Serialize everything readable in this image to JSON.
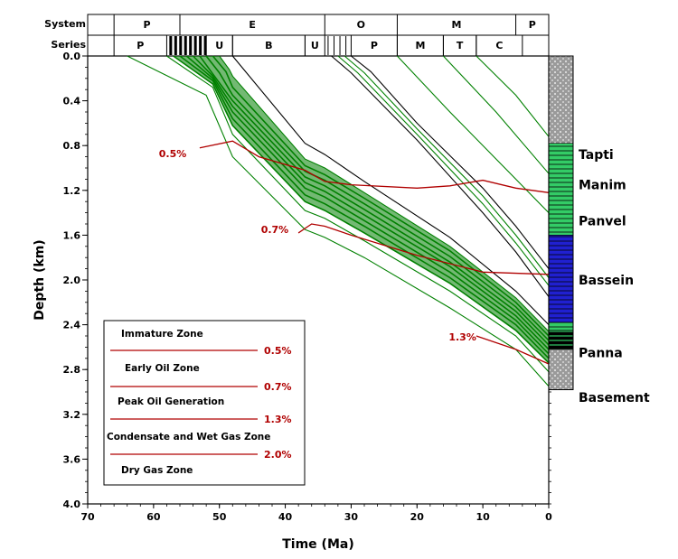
{
  "chart_data": {
    "type": "line",
    "title": "",
    "xlabel": "Time (Ma)",
    "ylabel": "Depth (km)",
    "xlim": [
      70,
      0
    ],
    "ylim": [
      0.0,
      4.0
    ],
    "x_ticks": [
      "70",
      "60",
      "50",
      "40",
      "30",
      "20",
      "10",
      "0"
    ],
    "y_ticks": [
      "0.0",
      "0.4",
      "0.8",
      "1.2",
      "1.6",
      "2.0",
      "2.4",
      "2.8",
      "3.2",
      "3.6",
      "4.0"
    ],
    "system_label": "System",
    "series_label": "Series",
    "systems": [
      {
        "label": "P",
        "start": 66,
        "end": 56
      },
      {
        "label": "E",
        "start": 56,
        "end": 34
      },
      {
        "label": "O",
        "start": 34,
        "end": 23
      },
      {
        "label": "M",
        "start": 23,
        "end": 5
      },
      {
        "label": "P",
        "start": 5,
        "end": 0
      }
    ],
    "series_epochs": [
      {
        "label": "P",
        "start": 66,
        "end": 58
      },
      {
        "label": "U",
        "start": 52,
        "end": 48
      },
      {
        "label": "B",
        "start": 48,
        "end": 37
      },
      {
        "label": "U",
        "start": 37,
        "end": 34
      },
      {
        "label": "P",
        "start": 30,
        "end": 23
      },
      {
        "label": "M",
        "start": 23,
        "end": 16
      },
      {
        "label": "T",
        "start": 16,
        "end": 11
      },
      {
        "label": "C",
        "start": 11,
        "end": 4
      }
    ],
    "burial_curves": [
      {
        "start": 64,
        "x": [
          64,
          52,
          48,
          37,
          34,
          28,
          15,
          5,
          0
        ],
        "y": [
          0,
          0.35,
          0.9,
          1.55,
          1.62,
          1.8,
          2.25,
          2.62,
          2.95
        ],
        "color": "#008000",
        "weight": 1
      },
      {
        "start": 58,
        "x": [
          58,
          51,
          48,
          37,
          34,
          28,
          15,
          5,
          0
        ],
        "y": [
          0,
          0.28,
          0.7,
          1.38,
          1.45,
          1.65,
          2.1,
          2.5,
          2.82
        ],
        "color": "#008000",
        "weight": 1
      },
      {
        "start": 57,
        "x": [
          57,
          51,
          48,
          37,
          34,
          28,
          15,
          5,
          0
        ],
        "y": [
          0,
          0.25,
          0.62,
          1.3,
          1.38,
          1.58,
          2.03,
          2.45,
          2.74
        ],
        "color": "#008000",
        "weight": 2
      },
      {
        "start": 56,
        "x": [
          56,
          51,
          48,
          37,
          34,
          28,
          15,
          5,
          0
        ],
        "y": [
          0,
          0.22,
          0.56,
          1.24,
          1.32,
          1.52,
          1.98,
          2.4,
          2.7
        ],
        "color": "#008000",
        "weight": 2
      },
      {
        "start": 55,
        "x": [
          55,
          51,
          48,
          37,
          34,
          28,
          15,
          5,
          0
        ],
        "y": [
          0,
          0.2,
          0.5,
          1.18,
          1.26,
          1.47,
          1.93,
          2.36,
          2.66
        ],
        "color": "#008000",
        "weight": 2
      },
      {
        "start": 54,
        "x": [
          54,
          51,
          48,
          37,
          34,
          28,
          15,
          5,
          0
        ],
        "y": [
          0,
          0.18,
          0.45,
          1.13,
          1.21,
          1.42,
          1.88,
          2.32,
          2.62
        ],
        "color": "#008000",
        "weight": 2
      },
      {
        "start": 53,
        "x": [
          53,
          51,
          48,
          37,
          34,
          28,
          15,
          5,
          0
        ],
        "y": [
          0,
          0.16,
          0.4,
          1.08,
          1.16,
          1.37,
          1.84,
          2.28,
          2.58
        ],
        "color": "#008000",
        "weight": 2
      },
      {
        "start": 52,
        "x": [
          52,
          50,
          48,
          37,
          34,
          28,
          15,
          5,
          0
        ],
        "y": [
          0,
          0.15,
          0.35,
          1.03,
          1.11,
          1.32,
          1.79,
          2.24,
          2.54
        ],
        "color": "#008000",
        "weight": 2
      },
      {
        "start": 51,
        "x": [
          51,
          49,
          48,
          37,
          34,
          28,
          15,
          5,
          0
        ],
        "y": [
          0,
          0.14,
          0.28,
          0.98,
          1.06,
          1.27,
          1.74,
          2.2,
          2.5
        ],
        "color": "#008000",
        "weight": 2
      },
      {
        "start": 50,
        "x": [
          50,
          48.5,
          48,
          37,
          34,
          28,
          15,
          5,
          0
        ],
        "y": [
          0,
          0.12,
          0.18,
          0.92,
          1.0,
          1.22,
          1.7,
          2.16,
          2.46
        ],
        "color": "#008000",
        "weight": 1
      },
      {
        "start": 48,
        "x": [
          48,
          37,
          34,
          28,
          15,
          5,
          0
        ],
        "y": [
          0,
          0.78,
          0.88,
          1.12,
          1.62,
          2.1,
          2.4
        ],
        "color": "#000000",
        "weight": 1
      },
      {
        "start": 33,
        "x": [
          33,
          30,
          20,
          10,
          5,
          0
        ],
        "y": [
          0,
          0.15,
          0.75,
          1.4,
          1.75,
          2.15
        ],
        "color": "#000000",
        "weight": 1
      },
      {
        "start": 32,
        "x": [
          32,
          29,
          20,
          10,
          5,
          0
        ],
        "y": [
          0,
          0.15,
          0.7,
          1.32,
          1.67,
          2.05
        ],
        "color": "#008000",
        "weight": 1
      },
      {
        "start": 31,
        "x": [
          31,
          28,
          20,
          10,
          5,
          0
        ],
        "y": [
          0,
          0.15,
          0.65,
          1.25,
          1.6,
          1.98
        ],
        "color": "#008000",
        "weight": 1
      },
      {
        "start": 30,
        "x": [
          30,
          27,
          20,
          10,
          5,
          0
        ],
        "y": [
          0,
          0.14,
          0.6,
          1.18,
          1.52,
          1.9
        ],
        "color": "#000000",
        "weight": 1
      },
      {
        "start": 23,
        "x": [
          23,
          15,
          5,
          0
        ],
        "y": [
          0,
          0.5,
          1.1,
          1.4
        ],
        "color": "#008000",
        "weight": 1
      },
      {
        "start": 16,
        "x": [
          16,
          8,
          0
        ],
        "y": [
          0,
          0.5,
          1.05
        ],
        "color": "#008000",
        "weight": 1
      },
      {
        "start": 11,
        "x": [
          11,
          5,
          0
        ],
        "y": [
          0,
          0.35,
          0.72
        ],
        "color": "#008000",
        "weight": 1
      }
    ],
    "isolines": [
      {
        "label": "0.5%",
        "x": [
          53,
          48,
          44,
          37,
          34,
          30,
          20,
          15,
          10,
          5,
          0
        ],
        "y": [
          0.82,
          0.76,
          0.9,
          1.02,
          1.12,
          1.15,
          1.18,
          1.16,
          1.11,
          1.18,
          1.22
        ],
        "label_x": 55,
        "label_y": 0.87
      },
      {
        "label": "0.7%",
        "x": [
          38,
          36,
          34,
          30,
          20,
          10,
          0
        ],
        "y": [
          1.58,
          1.5,
          1.52,
          1.6,
          1.78,
          1.93,
          1.95
        ],
        "label_x": 39.5,
        "label_y": 1.55
      },
      {
        "label": "1.3%",
        "x": [
          11,
          5,
          0
        ],
        "y": [
          2.5,
          2.62,
          2.75
        ],
        "label_x": 11,
        "label_y": 2.51
      }
    ],
    "formations": [
      {
        "label": "Tapti",
        "top": 0.78,
        "bottom": 1.05
      },
      {
        "label": "Manim",
        "top": 1.05,
        "bottom": 1.3
      },
      {
        "label": "Panvel",
        "top": 1.3,
        "bottom": 1.6
      },
      {
        "label": "Bassein",
        "top": 1.6,
        "bottom": 2.4
      },
      {
        "label": "Panna",
        "top": 2.4,
        "bottom": 2.75
      },
      {
        "label": "Basement",
        "top": 2.75,
        "bottom": 2.98
      }
    ],
    "legend": {
      "placement": "bottom-left",
      "entries": [
        {
          "label": "Immature Zone",
          "value": "0.5%"
        },
        {
          "label": "Early Oil Zone",
          "value": "0.7%"
        },
        {
          "label": "Peak Oil Generation",
          "value": "1.3%"
        },
        {
          "label": "Condensate and Wet Gas Zone",
          "value": "2.0%"
        },
        {
          "label": "Dry Gas Zone",
          "value": ""
        }
      ]
    },
    "colors": {
      "burial_green": "#008000",
      "burial_black": "#000000",
      "isoline_red": "#b00000",
      "label_red": "#b00000",
      "column_gray": "#9a9a9a",
      "column_green": "#33cc66",
      "column_blue": "#2020d0",
      "column_black": "#000000"
    },
    "grid": false
  }
}
